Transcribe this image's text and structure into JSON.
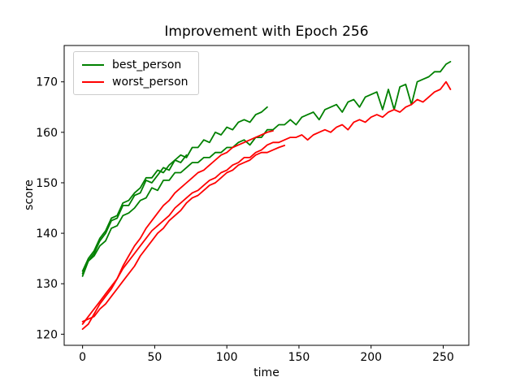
{
  "chart_data": {
    "type": "line",
    "title": "Improvement with Epoch 256",
    "xlabel": "time",
    "ylabel": "score",
    "xlim": [
      -12.75,
      267.75
    ],
    "ylim": [
      117.8,
      177.2
    ],
    "xticks": [
      0,
      50,
      100,
      150,
      200,
      250
    ],
    "yticks": [
      120,
      130,
      140,
      150,
      160,
      170
    ],
    "grid": false,
    "legend": {
      "position": "upper left",
      "entries": [
        {
          "label": "best_person",
          "color": "#008000"
        },
        {
          "label": "worst_person",
          "color": "#ff0000"
        }
      ]
    },
    "series": [
      {
        "name": "best_person_run_full",
        "legend": "best_person",
        "color": "#008000",
        "x": [
          0,
          4,
          8,
          12,
          16,
          20,
          24,
          28,
          32,
          36,
          40,
          44,
          48,
          52,
          56,
          60,
          64,
          68,
          72,
          76,
          80,
          84,
          88,
          92,
          96,
          100,
          104,
          108,
          112,
          116,
          120,
          124,
          128,
          132,
          136,
          140,
          144,
          148,
          152,
          156,
          160,
          164,
          168,
          172,
          176,
          180,
          184,
          188,
          192,
          196,
          200,
          204,
          208,
          212,
          216,
          220,
          224,
          228,
          232,
          236,
          240,
          244,
          248,
          252,
          255
        ],
        "y": [
          132,
          134.5,
          135.5,
          137.5,
          138.5,
          141,
          141.5,
          143.5,
          144,
          145,
          146.5,
          147,
          149,
          148.5,
          150.5,
          150.5,
          152,
          152,
          153,
          154,
          154,
          155,
          155,
          156,
          156,
          157,
          157,
          158,
          158.5,
          157.5,
          159,
          159,
          160.5,
          160.5,
          161.5,
          161.5,
          162.5,
          161.5,
          163,
          163.5,
          164,
          162.5,
          164.5,
          165,
          165.5,
          164,
          166,
          166.5,
          165,
          167,
          167.5,
          168,
          164.5,
          168.5,
          164.5,
          169,
          169.5,
          165.5,
          170,
          170.5,
          171,
          172,
          172,
          173.5,
          174
        ]
      },
      {
        "name": "best_person_run_b",
        "legend": "best_person",
        "color": "#008000",
        "x": [
          0,
          4,
          8,
          12,
          16,
          20,
          24,
          28,
          32,
          36,
          40,
          44,
          48,
          52,
          56,
          60,
          64,
          68,
          72,
          76,
          80,
          84,
          88,
          92,
          96,
          100,
          104,
          108,
          112,
          116,
          120,
          124,
          128
        ],
        "y": [
          131.5,
          134.5,
          136,
          138.5,
          140,
          142.5,
          143,
          145.5,
          145.5,
          147.5,
          148,
          150.5,
          150,
          151.5,
          153,
          152.5,
          154.5,
          155.5,
          155,
          157,
          157,
          158.5,
          158,
          160,
          159.5,
          161,
          160.5,
          162,
          162.5,
          162,
          163.5,
          164,
          165
        ]
      },
      {
        "name": "best_person_run_c",
        "legend": "best_person",
        "color": "#008000",
        "x": [
          0,
          4,
          8,
          12,
          16,
          20,
          24,
          28,
          32,
          36,
          40,
          44,
          48,
          52,
          56,
          60,
          64,
          68,
          72
        ],
        "y": [
          132.5,
          135,
          136.5,
          139,
          140.5,
          143,
          143.5,
          146,
          146.5,
          148,
          149,
          151,
          151,
          152.5,
          152,
          153.5,
          154.5,
          154,
          155.5
        ]
      },
      {
        "name": "worst_person_run_full",
        "legend": "worst_person",
        "color": "#ff0000",
        "x": [
          0,
          4,
          8,
          12,
          16,
          20,
          24,
          28,
          32,
          36,
          40,
          44,
          48,
          52,
          56,
          60,
          64,
          68,
          72,
          76,
          80,
          84,
          88,
          92,
          96,
          100,
          104,
          108,
          112,
          116,
          120,
          124,
          128,
          132,
          136,
          140,
          144,
          148,
          152,
          156,
          160,
          164,
          168,
          172,
          176,
          180,
          184,
          188,
          192,
          196,
          200,
          204,
          208,
          212,
          216,
          220,
          224,
          228,
          232,
          236,
          240,
          244,
          248,
          252,
          255
        ],
        "y": [
          122,
          123.5,
          125,
          126.5,
          128,
          129.5,
          131,
          133,
          134.5,
          136,
          137.5,
          139,
          140.5,
          141.5,
          142.5,
          143.5,
          145,
          146,
          147,
          148,
          148.5,
          149.5,
          150.5,
          151,
          152,
          152.5,
          153.5,
          154,
          155,
          155,
          156,
          156.5,
          157.5,
          158,
          158,
          158.5,
          159,
          159,
          159.5,
          158.5,
          159.5,
          160,
          160.5,
          160,
          161,
          161.5,
          160.5,
          162,
          162.5,
          162,
          163,
          163.5,
          163,
          164,
          164.5,
          164,
          165,
          165.5,
          166.5,
          166,
          167,
          168,
          168.5,
          170,
          168.5
        ]
      },
      {
        "name": "worst_person_run_b",
        "legend": "worst_person",
        "color": "#ff0000",
        "x": [
          0,
          4,
          8,
          12,
          16,
          20,
          24,
          28,
          32,
          36,
          40,
          44,
          48,
          52,
          56,
          60,
          64,
          68,
          72,
          76,
          80,
          84,
          88,
          92,
          96,
          100,
          104,
          108,
          112,
          116,
          120,
          124,
          128,
          132
        ],
        "y": [
          121,
          122,
          124,
          126,
          127.5,
          129,
          131,
          133.5,
          135.5,
          137.5,
          139,
          141,
          142.5,
          144,
          145.5,
          146.5,
          148,
          149,
          150,
          151,
          152,
          152.5,
          153.5,
          154.5,
          155.5,
          156,
          157,
          157.5,
          158,
          158.5,
          159,
          159.5,
          160,
          160.3
        ]
      },
      {
        "name": "worst_person_run_c",
        "legend": "worst_person",
        "color": "#ff0000",
        "x": [
          0,
          4,
          8,
          12,
          16,
          20,
          24,
          28,
          32,
          36,
          40,
          44,
          48,
          52,
          56,
          60,
          64,
          68,
          72,
          76,
          80,
          84,
          88,
          92,
          96,
          100,
          104,
          108,
          112,
          116,
          120,
          124,
          128,
          132,
          136,
          140
        ],
        "y": [
          122.5,
          123,
          123.5,
          125,
          126,
          127.5,
          129,
          130.5,
          132,
          133.5,
          135.5,
          137,
          138.5,
          140,
          141,
          142.5,
          143.5,
          144.5,
          146,
          147,
          147.5,
          148.5,
          149.5,
          150,
          151,
          152,
          152.5,
          153.5,
          154,
          154.5,
          155.5,
          156,
          156,
          156.5,
          157,
          157.4
        ]
      }
    ]
  }
}
